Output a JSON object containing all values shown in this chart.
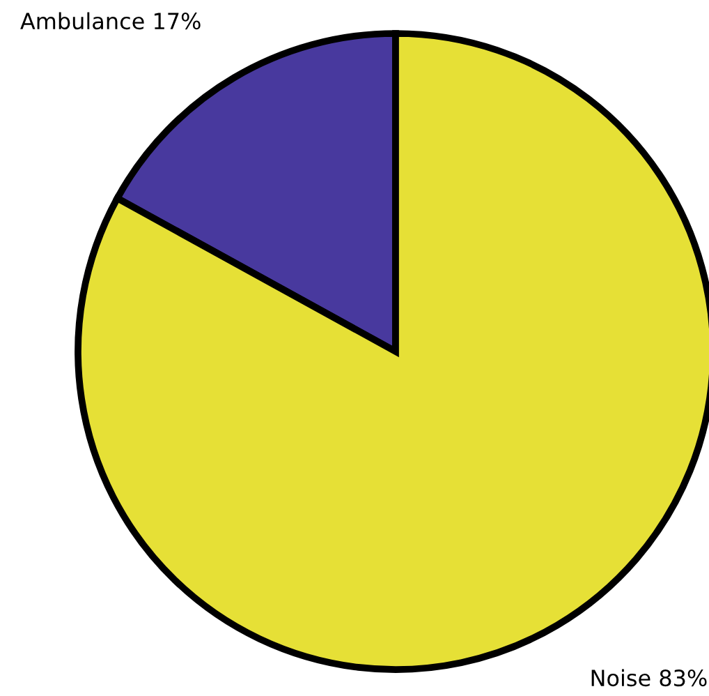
{
  "chart_data": {
    "type": "pie",
    "categories": [
      "Ambulance",
      "Noise"
    ],
    "values": [
      17,
      83
    ],
    "value_labels": [
      "17%",
      "83%"
    ],
    "colors": [
      "#48399e",
      "#e6e036"
    ]
  }
}
